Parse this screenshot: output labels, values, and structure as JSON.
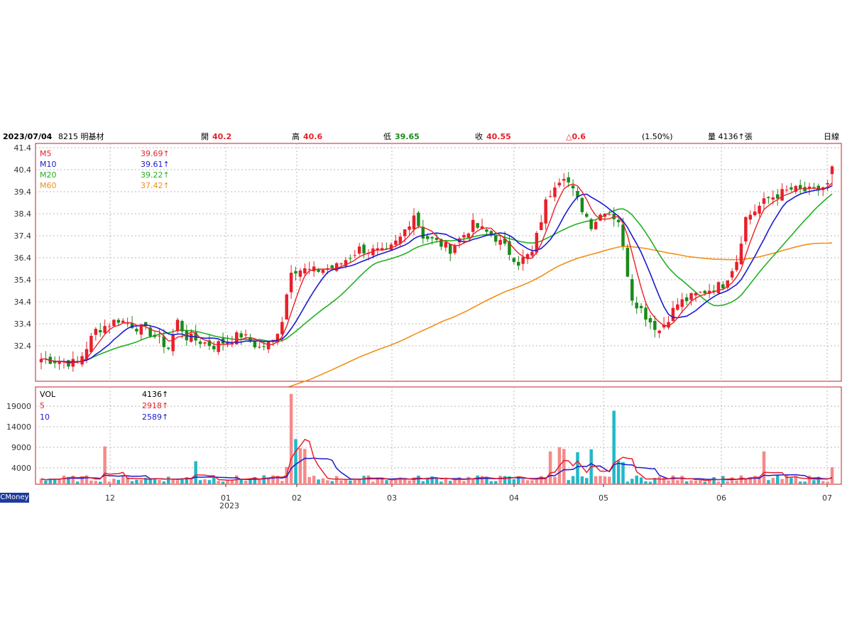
{
  "header": {
    "date": "2023/07/04",
    "stock": "8215 明基材",
    "open_label": "開",
    "open_value": "40.2",
    "high_label": "高",
    "high_value": "40.6",
    "low_label": "低",
    "low_value": "39.65",
    "close_label": "收",
    "close_value": "40.55",
    "change": "△0.6",
    "change_pct": "(1.50%)",
    "volume": "量 4136↑張",
    "period": "日線"
  },
  "brand": "CMoney",
  "colors": {
    "up": "#e8202a",
    "down": "#1a8a1a",
    "ma5": "#e8202a",
    "ma10": "#1a1ad0",
    "ma20": "#22b022",
    "ma60": "#f0901a",
    "vol_up": "#f58a8a",
    "vol_down": "#22b8c8",
    "frame": "#c0202a",
    "grid": "#b8b8b8",
    "date_axis": "#2030a0"
  },
  "chart_data": [
    {
      "type": "candlestick",
      "title": "8215 明基材 日線",
      "y_ticks": [
        "41.4",
        "40.4",
        "39.4",
        "38.4",
        "37.4",
        "36.4",
        "35.4",
        "34.4",
        "33.4",
        "32.4"
      ],
      "ylim": [
        31.4,
        41.4
      ],
      "x_ticks": [
        "12",
        "01",
        "02",
        "03",
        "04",
        "05",
        "06",
        "07"
      ],
      "x_year_label": "2023",
      "legend": [
        {
          "name": "M5",
          "value": "39.69↑",
          "color_key": "ma5"
        },
        {
          "name": "M10",
          "value": "39.61↑",
          "color_key": "ma10"
        },
        {
          "name": "M20",
          "value": "39.22↑",
          "color_key": "ma20"
        },
        {
          "name": "M60",
          "value": "37.42↑",
          "color_key": "ma60"
        }
      ],
      "ohlc_waypoints": [
        {
          "i": 0,
          "c": 31.8
        },
        {
          "i": 8,
          "c": 31.6
        },
        {
          "i": 12,
          "c": 33.1
        },
        {
          "i": 17,
          "c": 33.6
        },
        {
          "i": 24,
          "c": 33.0
        },
        {
          "i": 28,
          "c": 32.3
        },
        {
          "i": 30,
          "c": 33.5
        },
        {
          "i": 32,
          "c": 32.8
        },
        {
          "i": 38,
          "c": 32.4
        },
        {
          "i": 44,
          "c": 32.9
        },
        {
          "i": 48,
          "c": 32.3
        },
        {
          "i": 51,
          "c": 32.6
        },
        {
          "i": 53,
          "c": 33.6
        },
        {
          "i": 55,
          "c": 35.9
        },
        {
          "i": 60,
          "c": 35.8
        },
        {
          "i": 65,
          "c": 36.0
        },
        {
          "i": 70,
          "c": 36.8
        },
        {
          "i": 76,
          "c": 36.6
        },
        {
          "i": 79,
          "c": 37.3
        },
        {
          "i": 82,
          "c": 38.4
        },
        {
          "i": 84,
          "c": 37.4
        },
        {
          "i": 90,
          "c": 36.8
        },
        {
          "i": 95,
          "c": 37.9
        },
        {
          "i": 100,
          "c": 37.3
        },
        {
          "i": 105,
          "c": 36.2
        },
        {
          "i": 108,
          "c": 36.6
        },
        {
          "i": 111,
          "c": 38.9
        },
        {
          "i": 113,
          "c": 39.8
        },
        {
          "i": 115,
          "c": 40.2
        },
        {
          "i": 118,
          "c": 39.0
        },
        {
          "i": 121,
          "c": 37.9
        },
        {
          "i": 124,
          "c": 38.6
        },
        {
          "i": 127,
          "c": 38.1
        },
        {
          "i": 128,
          "c": 36.8
        },
        {
          "i": 130,
          "c": 34.6
        },
        {
          "i": 134,
          "c": 33.5
        },
        {
          "i": 136,
          "c": 33.1
        },
        {
          "i": 140,
          "c": 34.3
        },
        {
          "i": 145,
          "c": 34.8
        },
        {
          "i": 150,
          "c": 35.2
        },
        {
          "i": 153,
          "c": 36.3
        },
        {
          "i": 155,
          "c": 38.2
        },
        {
          "i": 160,
          "c": 39.1
        },
        {
          "i": 165,
          "c": 39.5
        },
        {
          "i": 170,
          "c": 39.4
        },
        {
          "i": 173,
          "c": 39.7
        },
        {
          "i": 174,
          "c": 40.55
        }
      ],
      "last_candle": {
        "open": 40.2,
        "high": 40.6,
        "low": 39.65,
        "close": 40.55
      }
    },
    {
      "type": "bar",
      "title": "VOL",
      "y_ticks": [
        "19000",
        "14000",
        "9000",
        "4000"
      ],
      "ylim": [
        0,
        23000
      ],
      "legend": [
        {
          "name": "VOL",
          "value": "4136↑",
          "color_key": "ma5"
        },
        {
          "name": "5",
          "value": "2918↑",
          "color_key": "ma5"
        },
        {
          "name": "10",
          "value": "2589↑",
          "color_key": "ma10"
        }
      ],
      "spikes": [
        {
          "i": 14,
          "v": 9200
        },
        {
          "i": 34,
          "v": 5600
        },
        {
          "i": 54,
          "v": 4200
        },
        {
          "i": 55,
          "v": 22000
        },
        {
          "i": 56,
          "v": 11000
        },
        {
          "i": 57,
          "v": 8800
        },
        {
          "i": 58,
          "v": 8600
        },
        {
          "i": 112,
          "v": 8000
        },
        {
          "i": 114,
          "v": 9000
        },
        {
          "i": 115,
          "v": 8600
        },
        {
          "i": 118,
          "v": 7800
        },
        {
          "i": 121,
          "v": 8500
        },
        {
          "i": 126,
          "v": 17900
        },
        {
          "i": 127,
          "v": 5800
        },
        {
          "i": 128,
          "v": 5400
        },
        {
          "i": 159,
          "v": 8000
        },
        {
          "i": 174,
          "v": 4136
        }
      ]
    }
  ]
}
